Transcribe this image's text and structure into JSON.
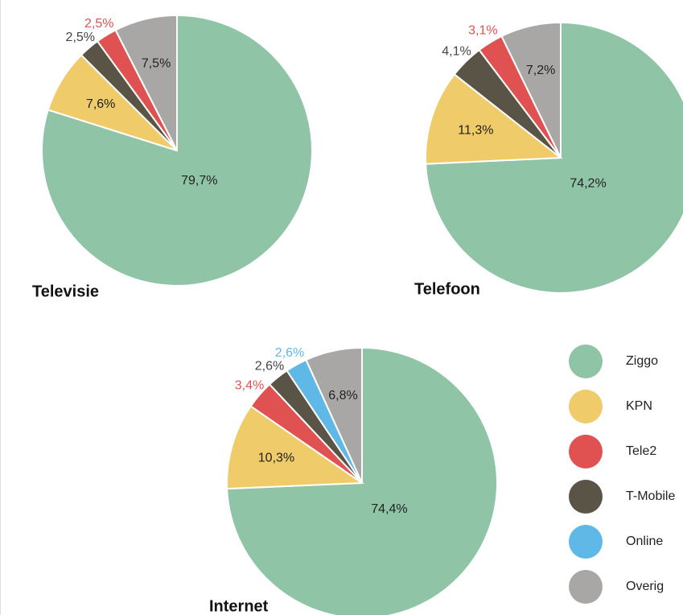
{
  "chart_data": [
    {
      "type": "pie",
      "title": "Televisie",
      "categories": [
        "Ziggo",
        "KPN",
        "T-Mobile",
        "Tele2",
        "Overig"
      ],
      "values": [
        79.7,
        7.6,
        2.5,
        2.5,
        7.5
      ],
      "value_labels": [
        "79,7%",
        "7,6%",
        "2,5%",
        "2,5%",
        "7,5%"
      ],
      "colors": [
        "#8fc4a7",
        "#f0cb69",
        "#5a5446",
        "#e05252",
        "#a9a7a6"
      ],
      "label_colors": [
        "#222222",
        "#222222",
        "#444444",
        "#e05252",
        "#222222"
      ]
    },
    {
      "type": "pie",
      "title": "Telefoon",
      "categories": [
        "Ziggo",
        "KPN",
        "T-Mobile",
        "Tele2",
        "Overig"
      ],
      "values": [
        74.2,
        11.3,
        4.1,
        3.1,
        7.2
      ],
      "value_labels": [
        "74,2%",
        "11,3%",
        "4,1%",
        "3,1%",
        "7,2%"
      ],
      "colors": [
        "#8fc4a7",
        "#f0cb69",
        "#5a5446",
        "#e05252",
        "#a9a7a6"
      ],
      "label_colors": [
        "#222222",
        "#222222",
        "#444444",
        "#e05252",
        "#222222"
      ]
    },
    {
      "type": "pie",
      "title": "Internet",
      "categories": [
        "Ziggo",
        "KPN",
        "Tele2",
        "T-Mobile",
        "Online",
        "Overig"
      ],
      "values": [
        74.4,
        10.3,
        3.4,
        2.6,
        2.6,
        6.8
      ],
      "value_labels": [
        "74,4%",
        "10,3%",
        "3,4%",
        "2,6%",
        "2,6%",
        "6,8%"
      ],
      "colors": [
        "#8fc4a7",
        "#f0cb69",
        "#e05252",
        "#5a5446",
        "#5fb8e6",
        "#a9a7a6"
      ],
      "label_colors": [
        "#222222",
        "#222222",
        "#e05252",
        "#444444",
        "#5fb8e6",
        "#222222"
      ]
    }
  ],
  "legend": {
    "items": [
      {
        "name": "Ziggo",
        "color": "#8fc4a7"
      },
      {
        "name": "KPN",
        "color": "#f0cb69"
      },
      {
        "name": "Tele2",
        "color": "#e05252"
      },
      {
        "name": "T-Mobile",
        "color": "#5a5446"
      },
      {
        "name": "Online",
        "color": "#5fb8e6"
      },
      {
        "name": "Overig",
        "color": "#a9a7a6"
      }
    ]
  }
}
